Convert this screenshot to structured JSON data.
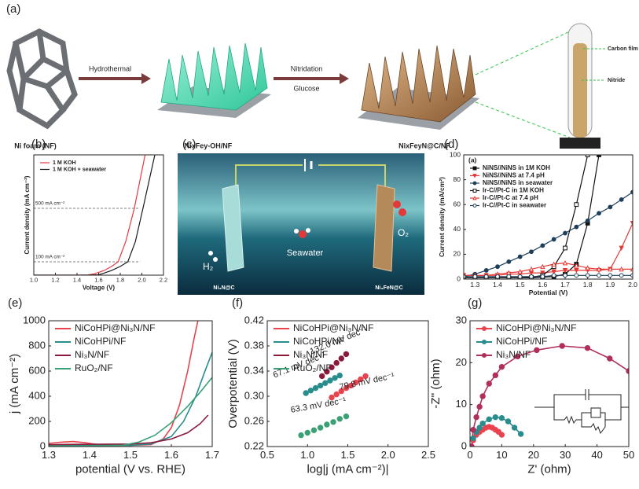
{
  "figure": {
    "panel_a": {
      "label": "(a)",
      "items": [
        "Ni foam (NF)",
        "NixFey-OH/NF",
        "NixFeyN@C/NF"
      ],
      "arrows": [
        "Hydrothermal",
        "Nitridation",
        "Glucose"
      ],
      "tube": [
        "Carbon film",
        "Nitride"
      ]
    },
    "panel_c": {
      "label": "(c)",
      "texts": [
        "H₂",
        "Ni₃N@C",
        "Seawater",
        "O₂",
        "Ni₃FeN@C"
      ]
    }
  },
  "chart_data": [
    {
      "type": "line",
      "panel": "(b)",
      "x_label": "Voltage (V)",
      "y_label": "Current density (mA cm⁻²)",
      "xlim": [
        1.0,
        2.2
      ],
      "ylim": [
        0,
        900
      ],
      "xticks": [
        {
          "value": 1,
          "label": "1.0"
        },
        1.2,
        1.4,
        1.6,
        1.8,
        {
          "value": 2,
          "label": "2.0"
        },
        2.2
      ],
      "legend": "upper left",
      "hlines": [
        {
          "value": 500,
          "label": "500 mA cm⁻²"
        },
        {
          "value": 100,
          "label": "100 mA cm⁻²"
        }
      ],
      "series": [
        {
          "name": "1 M KOH",
          "color": "#e53945",
          "x": [
            1.0,
            1.4,
            1.5,
            1.56,
            1.65,
            1.72,
            1.78,
            1.85,
            1.93,
            2.03
          ],
          "values": [
            0,
            0,
            2,
            10,
            35,
            65,
            100,
            250,
            500,
            900
          ]
        },
        {
          "name": "1 M KOH + seawater",
          "color": "#1a1a1a",
          "x": [
            1.0,
            1.5,
            1.6,
            1.63,
            1.72,
            1.8,
            1.87,
            1.94,
            2.01,
            2.12
          ],
          "values": [
            0,
            0,
            3,
            10,
            35,
            65,
            100,
            250,
            500,
            900
          ]
        }
      ]
    },
    {
      "type": "line",
      "panel": "(d)",
      "inner_label": "(a)",
      "x_label": "Potential (V)",
      "y_label": "Current density (mA/cm²)",
      "xlim": [
        1.25,
        2.0
      ],
      "ylim": [
        0,
        100
      ],
      "xticks": [
        1.3,
        1.4,
        1.5,
        1.6,
        1.7,
        1.8,
        1.9,
        {
          "value": 2,
          "label": "2.0"
        }
      ],
      "yticks": [
        0,
        20,
        40,
        60,
        80,
        100
      ],
      "legend": "upper left",
      "series": [
        {
          "name": "NiNS//NiNS in 1M KOH",
          "color": "#111111",
          "marker": "square",
          "filled": true,
          "x": [
            1.25,
            1.3,
            1.35,
            1.4,
            1.45,
            1.5,
            1.55,
            1.6,
            1.65,
            1.7,
            1.75,
            1.8,
            1.85
          ],
          "values": [
            1,
            1,
            1,
            1,
            1,
            1,
            1,
            1.5,
            2,
            4,
            12,
            45,
            100
          ]
        },
        {
          "name": "NiNS//NiNS at 7.4 pH",
          "color": "#e53935",
          "marker": "triangle-down",
          "filled": true,
          "x": [
            1.25,
            1.3,
            1.35,
            1.4,
            1.45,
            1.5,
            1.55,
            1.6,
            1.65,
            1.7,
            1.75,
            1.8,
            1.85,
            1.9,
            1.95,
            2.0
          ],
          "values": [
            3,
            3,
            3,
            3,
            4,
            4,
            5,
            5,
            6,
            7,
            7,
            7,
            7,
            8,
            25,
            45
          ]
        },
        {
          "name": "NiNS//NiNS in seawater",
          "color": "#1e3f5a",
          "marker": "circle",
          "filled": true,
          "x": [
            1.25,
            1.3,
            1.35,
            1.4,
            1.45,
            1.5,
            1.55,
            1.6,
            1.65,
            1.7,
            1.75,
            1.8,
            1.85,
            1.9,
            1.95,
            2.0
          ],
          "values": [
            2,
            4,
            7,
            10,
            14,
            18,
            22,
            27,
            32,
            37,
            42,
            47,
            53,
            58,
            64,
            70
          ]
        },
        {
          "name": "Ir-C//Pt-C in 1M KOH",
          "color": "#111111",
          "marker": "square",
          "filled": false,
          "x": [
            1.25,
            1.3,
            1.35,
            1.4,
            1.45,
            1.5,
            1.55,
            1.6,
            1.65,
            1.7,
            1.75,
            1.8
          ],
          "values": [
            1,
            1,
            1,
            1,
            1,
            1,
            1.5,
            3,
            10,
            25,
            60,
            100
          ]
        },
        {
          "name": "Ir-C//Pt-C at 7.4 pH",
          "color": "#e53935",
          "marker": "triangle-up",
          "filled": false,
          "x": [
            1.25,
            1.3,
            1.35,
            1.4,
            1.45,
            1.5,
            1.55,
            1.6,
            1.65,
            1.7,
            1.75,
            1.8,
            1.85,
            1.9,
            1.95,
            2.0
          ],
          "values": [
            3,
            3,
            3,
            4,
            5,
            6,
            8,
            10,
            12,
            13,
            11,
            9,
            8,
            8,
            8,
            8
          ]
        },
        {
          "name": "Ir-C//Pt-C in seawater",
          "color": "#1e3f5a",
          "marker": "circle",
          "filled": false,
          "x": [
            1.25,
            1.3,
            1.35,
            1.4,
            1.45,
            1.5,
            1.55,
            1.6,
            1.65,
            1.7,
            1.75,
            1.8,
            1.85,
            1.9,
            1.95,
            2.0
          ],
          "values": [
            2,
            2,
            2,
            2,
            2,
            2,
            2,
            2,
            3,
            3,
            3,
            3,
            3,
            3,
            3,
            3
          ]
        }
      ]
    },
    {
      "type": "line",
      "panel": "(e)",
      "x_label": "potential (V vs. RHE)",
      "y_label": "j (mA cm⁻²)",
      "xlim": [
        1.3,
        1.7
      ],
      "ylim": [
        0,
        1000
      ],
      "xticks": [
        1.3,
        1.4,
        1.5,
        1.6,
        1.7
      ],
      "yticks": [
        0,
        200,
        400,
        600,
        800,
        1000
      ],
      "legend": "upper left",
      "series": [
        {
          "name": "NiCoHPi@Ni₃N/NF",
          "color": "#e8434f",
          "x": [
            1.3,
            1.33,
            1.36,
            1.39,
            1.42,
            1.45,
            1.5,
            1.55,
            1.58,
            1.6,
            1.62,
            1.64,
            1.655,
            1.665
          ],
          "values": [
            25,
            35,
            40,
            30,
            15,
            10,
            10,
            15,
            60,
            150,
            330,
            600,
            850,
            1000
          ]
        },
        {
          "name": "NiCoHPi/NF",
          "color": "#2a8d8d",
          "x": [
            1.3,
            1.4,
            1.5,
            1.55,
            1.6,
            1.63,
            1.66,
            1.68,
            1.7
          ],
          "values": [
            10,
            10,
            10,
            20,
            80,
            200,
            400,
            580,
            750
          ]
        },
        {
          "name": "Ni₃N/NF",
          "color": "#8b1a3a",
          "x": [
            1.3,
            1.4,
            1.5,
            1.55,
            1.6,
            1.64,
            1.67,
            1.69
          ],
          "values": [
            15,
            18,
            20,
            30,
            60,
            110,
            180,
            250
          ]
        },
        {
          "name": "RuO₂/NF",
          "color": "#3aa176",
          "x": [
            1.3,
            1.4,
            1.48,
            1.52,
            1.56,
            1.6,
            1.64,
            1.67,
            1.7
          ],
          "values": [
            5,
            5,
            10,
            35,
            90,
            190,
            320,
            430,
            550
          ]
        }
      ]
    },
    {
      "type": "scatter",
      "panel": "(f)",
      "x_label": "log|j (mA cm⁻²)|",
      "y_label": "Overpotential (V)",
      "xlim": [
        0.5,
        2.5
      ],
      "ylim": [
        0.22,
        0.42
      ],
      "xticks": [
        0.5,
        {
          "value": 1,
          "label": "1.0"
        },
        1.5,
        {
          "value": 2,
          "label": "2.0"
        },
        2.5
      ],
      "yticks": [
        0.22,
        0.26,
        {
          "value": 0.3,
          "label": "0.30"
        },
        0.34,
        0.38,
        0.42
      ],
      "legend": "upper left",
      "annotations": [
        "132.0 mV dec⁻¹",
        "67.1 mV dec⁻¹",
        "79.8 mV dec⁻¹",
        "63.3 mV dec⁻¹"
      ],
      "series": [
        {
          "name": "NiCoHPi@Ni₃N/NF",
          "color": "#e8434f",
          "x": [
            1.3,
            1.36,
            1.42,
            1.48,
            1.54,
            1.6,
            1.66,
            1.72
          ],
          "values": [
            0.298,
            0.303,
            0.308,
            0.313,
            0.317,
            0.322,
            0.327,
            0.332
          ]
        },
        {
          "name": "NiCoHPi/NF",
          "color": "#2a8d8d",
          "x": [
            0.98,
            1.04,
            1.1,
            1.16,
            1.22,
            1.28,
            1.34,
            1.4
          ],
          "values": [
            0.305,
            0.309,
            0.313,
            0.317,
            0.321,
            0.325,
            0.329,
            0.333
          ]
        },
        {
          "name": "Ni₃N/NF",
          "color": "#8b1a3a",
          "x": [
            1.18,
            1.24,
            1.3,
            1.36,
            1.42,
            1.48
          ],
          "values": [
            0.332,
            0.339,
            0.346,
            0.353,
            0.36,
            0.367
          ]
        },
        {
          "name": "RuO₂/NF",
          "color": "#3aa176",
          "x": [
            0.92,
            1.0,
            1.08,
            1.16,
            1.24,
            1.32,
            1.4,
            1.48
          ],
          "values": [
            0.238,
            0.242,
            0.246,
            0.25,
            0.255,
            0.259,
            0.264,
            0.268
          ]
        }
      ]
    },
    {
      "type": "line",
      "panel": "(g)",
      "x_label": "Z' (ohm)",
      "y_label": "-Z'' (ohm)",
      "xlim": [
        0,
        50
      ],
      "ylim": [
        0,
        30
      ],
      "xticks": [
        0,
        10,
        20,
        30,
        40,
        50
      ],
      "yticks": [
        0,
        10,
        20,
        30
      ],
      "legend": "upper left",
      "series": [
        {
          "name": "NiCoHPi@Ni₃N/NF",
          "color": "#e8434f",
          "marker": "circle",
          "filled": true,
          "x": [
            0.5,
            1,
            2,
            3,
            4,
            5,
            6,
            7,
            8,
            9,
            10
          ],
          "values": [
            0,
            1.5,
            2.8,
            3.5,
            4,
            4.5,
            4.7,
            4.5,
            4,
            3.5,
            2.8
          ]
        },
        {
          "name": "NiCoHPi/NF",
          "color": "#2a8d8d",
          "marker": "circle",
          "filled": true,
          "x": [
            0.5,
            1,
            2,
            3,
            4,
            6,
            8,
            10,
            12,
            14,
            16
          ],
          "values": [
            0,
            2,
            3.5,
            4.5,
            5.5,
            6.5,
            7,
            6.8,
            6,
            4.5,
            3
          ]
        },
        {
          "name": "Ni₃N/NF",
          "color": "#b0305a",
          "marker": "circle",
          "filled": true,
          "x": [
            0.5,
            1,
            2,
            3,
            4,
            6,
            8,
            10,
            15,
            21,
            29,
            37,
            44,
            50
          ],
          "values": [
            0,
            4,
            7,
            9.5,
            12,
            15,
            17,
            19,
            21.5,
            23,
            24,
            23.5,
            21,
            18
          ]
        }
      ]
    }
  ]
}
